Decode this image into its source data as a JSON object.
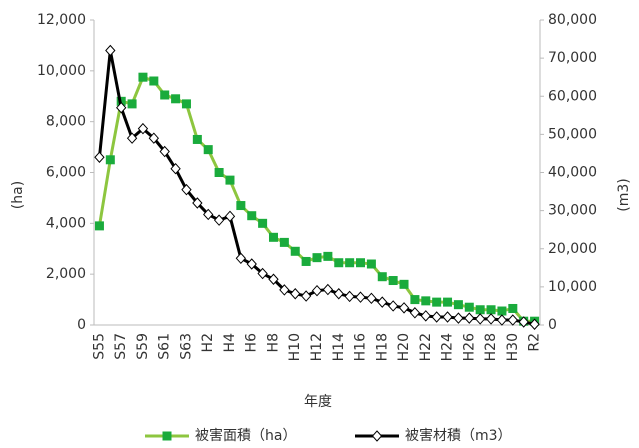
{
  "chart_data": {
    "type": "line",
    "x_label": "年度",
    "y_label": "(ha)",
    "y2_label": "(m3)",
    "categories": [
      "S55",
      null,
      "S57",
      null,
      "S59",
      null,
      "S61",
      null,
      "S63",
      null,
      "H2",
      null,
      "H4",
      null,
      "H6",
      null,
      "H8",
      null,
      "H10",
      null,
      "H12",
      null,
      "H14",
      null,
      "H16",
      null,
      "H18",
      null,
      "H20",
      null,
      "H22",
      null,
      "H24",
      null,
      "H26",
      null,
      "H28",
      null,
      "H30",
      null,
      "R2"
    ],
    "series": [
      {
        "name": "被害面積（ha）",
        "color": "#8dc63f",
        "marker_color": "#1aab3c",
        "marker": "square",
        "values": [
          3900,
          6500,
          8800,
          8700,
          9750,
          9600,
          9050,
          8900,
          8700,
          7300,
          6900,
          6000,
          5700,
          4700,
          4300,
          4000,
          3450,
          3250,
          2900,
          2500,
          2650,
          2700,
          2450,
          2450,
          2450,
          2400,
          1900,
          1750,
          1600,
          1000,
          950,
          900,
          900,
          800,
          700,
          600,
          600,
          550,
          650,
          150,
          150
        ]
      },
      {
        "name": "被害材積（m3）",
        "color": "#000000",
        "marker": "diamond",
        "axis": "y2",
        "values": [
          44000,
          72000,
          57000,
          49000,
          51500,
          49000,
          45500,
          41000,
          35500,
          32000,
          29000,
          27500,
          28500,
          17500,
          16000,
          13500,
          12000,
          9200,
          8200,
          7600,
          9000,
          9300,
          8200,
          7500,
          7300,
          7000,
          6000,
          5000,
          4500,
          3200,
          2400,
          2100,
          2100,
          1800,
          1800,
          1600,
          1600,
          1300,
          1300,
          800,
          200
        ]
      }
    ],
    "ylim": [
      0,
      12000
    ],
    "yticks": [
      0,
      {
        "value": 2000,
        "label": "2,000"
      },
      {
        "value": 4000,
        "label": "4,000"
      },
      {
        "value": 6000,
        "label": "6,000"
      },
      {
        "value": 8000,
        "label": "8,000"
      },
      {
        "value": 10000,
        "label": "10,000"
      },
      {
        "value": 12000,
        "label": "12,000"
      }
    ],
    "y2lim": [
      0,
      80000
    ],
    "y2ticks": [
      0,
      {
        "value": 10000,
        "label": "10,000"
      },
      {
        "value": 20000,
        "label": "20,000"
      },
      {
        "value": 30000,
        "label": "30,000"
      },
      {
        "value": 40000,
        "label": "40,000"
      },
      {
        "value": 50000,
        "label": "50,000"
      },
      {
        "value": 60000,
        "label": "60,000"
      },
      {
        "value": 70000,
        "label": "70,000"
      },
      {
        "value": 80000,
        "label": "80,000"
      }
    ],
    "legend": "bottom"
  }
}
